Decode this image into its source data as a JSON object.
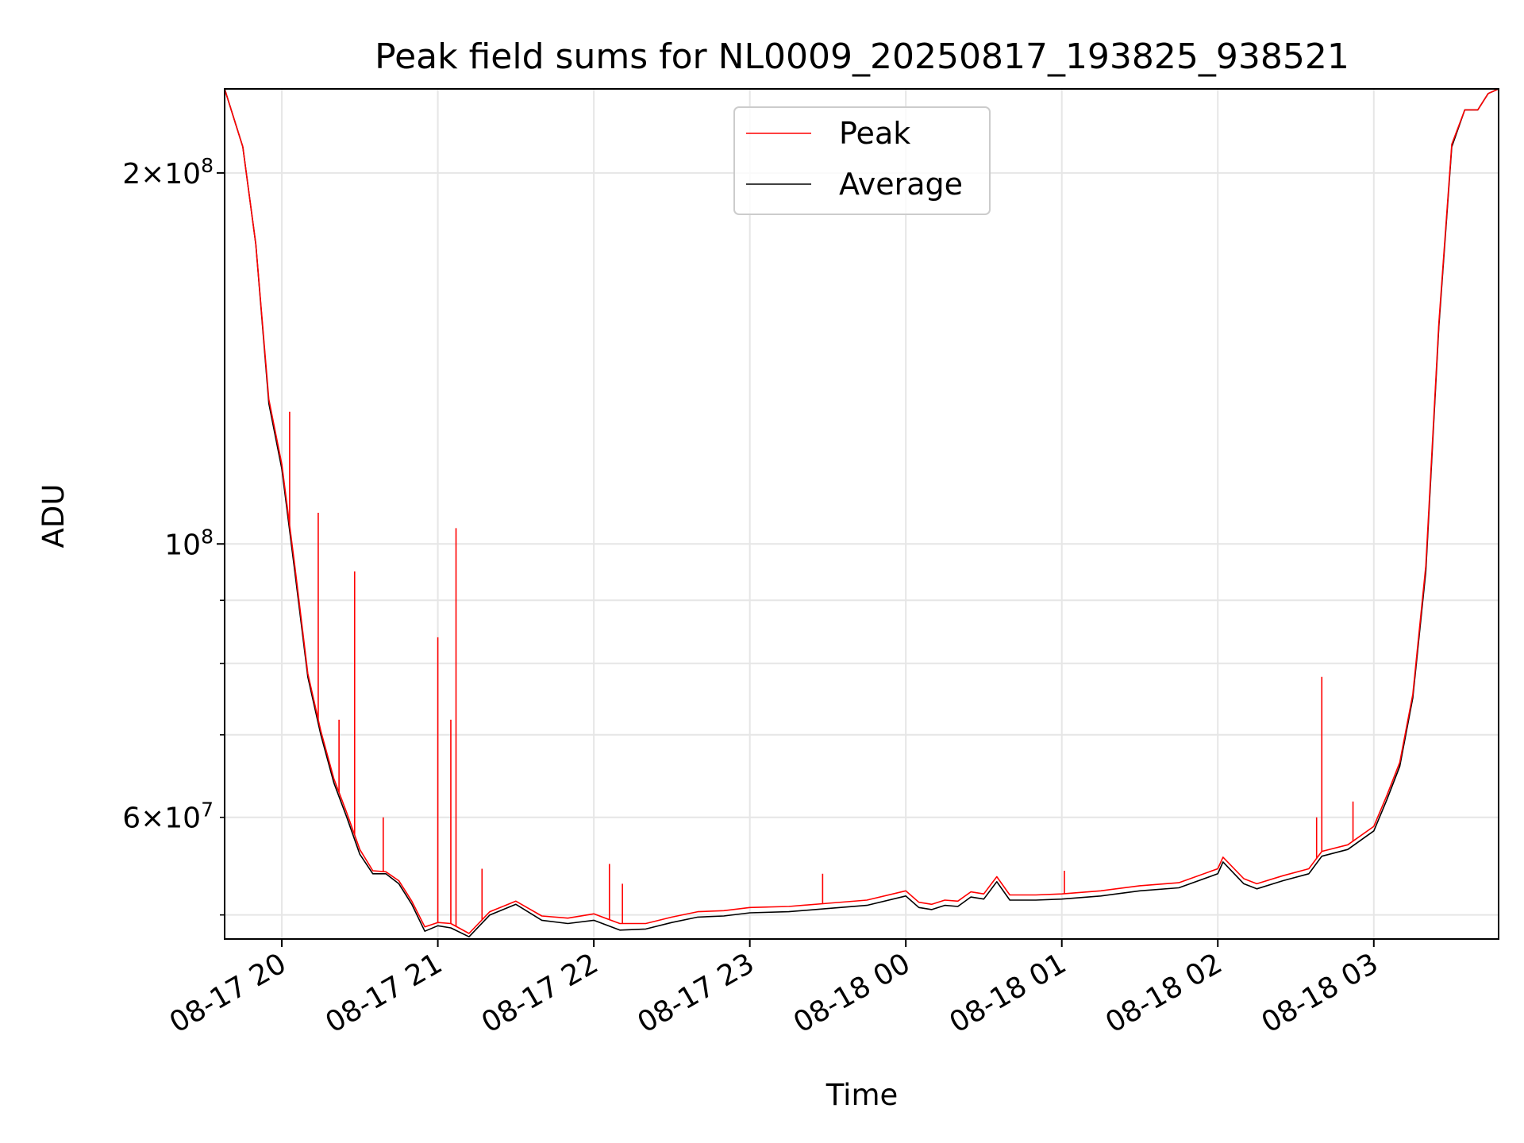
{
  "chart_data": {
    "type": "line",
    "title": "Peak field sums for NL0009_20250817_193825_938521",
    "xlabel": "Time",
    "ylabel": "ADU",
    "y_scale": "log",
    "ylim": [
      47800000,
      234000000
    ],
    "xlim": [
      "2025-08-17 19:38",
      "2025-08-18 03:48"
    ],
    "grid": true,
    "legend_position": "upper center",
    "x_ticks": [
      {
        "x": "2025-08-17 20:00",
        "label": "08-17 20"
      },
      {
        "x": "2025-08-17 21:00",
        "label": "08-17 21"
      },
      {
        "x": "2025-08-17 22:00",
        "label": "08-17 22"
      },
      {
        "x": "2025-08-17 23:00",
        "label": "08-17 23"
      },
      {
        "x": "2025-08-18 00:00",
        "label": "08-18 00"
      },
      {
        "x": "2025-08-18 01:00",
        "label": "08-18 01"
      },
      {
        "x": "2025-08-18 02:00",
        "label": "08-18 02"
      },
      {
        "x": "2025-08-18 03:00",
        "label": "08-18 03"
      }
    ],
    "y_major_ticks": [
      {
        "value": 100000000,
        "base": "10",
        "exp": "8"
      },
      {
        "value": 200000000,
        "mant": "2",
        "base": "10",
        "exp": "8"
      }
    ],
    "y_minor_ticks": [
      {
        "value": 50000000
      },
      {
        "value": 60000000,
        "mant": "6",
        "base": "10",
        "exp": "7"
      },
      {
        "value": 70000000
      },
      {
        "value": 80000000
      },
      {
        "value": 90000000
      }
    ],
    "series": [
      {
        "name": "Average",
        "color": "#000000",
        "x": [
          "2025-08-17 19:38",
          "2025-08-17 19:45",
          "2025-08-17 19:50",
          "2025-08-17 19:55",
          "2025-08-17 20:00",
          "2025-08-17 20:05",
          "2025-08-17 20:10",
          "2025-08-17 20:15",
          "2025-08-17 20:20",
          "2025-08-17 20:25",
          "2025-08-17 20:30",
          "2025-08-17 20:35",
          "2025-08-17 20:40",
          "2025-08-17 20:45",
          "2025-08-17 20:50",
          "2025-08-17 20:55",
          "2025-08-17 21:00",
          "2025-08-17 21:05",
          "2025-08-17 21:12",
          "2025-08-17 21:20",
          "2025-08-17 21:30",
          "2025-08-17 21:40",
          "2025-08-17 21:50",
          "2025-08-17 22:00",
          "2025-08-17 22:10",
          "2025-08-17 22:20",
          "2025-08-17 22:30",
          "2025-08-17 22:40",
          "2025-08-17 22:50",
          "2025-08-17 23:00",
          "2025-08-17 23:15",
          "2025-08-17 23:30",
          "2025-08-17 23:45",
          "2025-08-18 00:00",
          "2025-08-18 00:05",
          "2025-08-18 00:10",
          "2025-08-18 00:15",
          "2025-08-18 00:20",
          "2025-08-18 00:25",
          "2025-08-18 00:30",
          "2025-08-18 00:35",
          "2025-08-18 00:40",
          "2025-08-18 00:50",
          "2025-08-18 01:00",
          "2025-08-18 01:15",
          "2025-08-18 01:30",
          "2025-08-18 01:45",
          "2025-08-18 02:00",
          "2025-08-18 02:02",
          "2025-08-18 02:10",
          "2025-08-18 02:15",
          "2025-08-18 02:25",
          "2025-08-18 02:35",
          "2025-08-18 02:40",
          "2025-08-18 02:50",
          "2025-08-18 03:00",
          "2025-08-18 03:05",
          "2025-08-18 03:10",
          "2025-08-18 03:15",
          "2025-08-18 03:20",
          "2025-08-18 03:25",
          "2025-08-18 03:30",
          "2025-08-18 03:35",
          "2025-08-18 03:40",
          "2025-08-18 03:44",
          "2025-08-18 03:48"
        ],
        "y": [
          234000000,
          210000000,
          175000000,
          130000000,
          115000000,
          95000000,
          78000000,
          70000000,
          64000000,
          60000000,
          56000000,
          54000000,
          54000000,
          53000000,
          51000000,
          48500000,
          49000000,
          48800000,
          48000000,
          50000000,
          51000000,
          49500000,
          49200000,
          49500000,
          48600000,
          48700000,
          49300000,
          49800000,
          49900000,
          50200000,
          50300000,
          50600000,
          50900000,
          51800000,
          50700000,
          50500000,
          50900000,
          50800000,
          51700000,
          51500000,
          53200000,
          51400000,
          51400000,
          51500000,
          51800000,
          52300000,
          52600000,
          54000000,
          55200000,
          53000000,
          52500000,
          53300000,
          54000000,
          55800000,
          56500000,
          58500000,
          62000000,
          66000000,
          75000000,
          95000000,
          150000000,
          210000000,
          225000000,
          225000000,
          232000000,
          234000000
        ]
      },
      {
        "name": "Peak",
        "color": "#ff0000",
        "x": [
          "2025-08-17 19:38",
          "2025-08-17 19:45",
          "2025-08-17 19:50",
          "2025-08-17 19:55",
          "2025-08-17 20:00",
          "2025-08-17 20:05",
          "2025-08-17 20:10",
          "2025-08-17 20:15",
          "2025-08-17 20:20",
          "2025-08-17 20:25",
          "2025-08-17 20:30",
          "2025-08-17 20:35",
          "2025-08-17 20:40",
          "2025-08-17 20:45",
          "2025-08-17 20:50",
          "2025-08-17 20:55",
          "2025-08-17 21:00",
          "2025-08-17 21:05",
          "2025-08-17 21:12",
          "2025-08-17 21:20",
          "2025-08-17 21:30",
          "2025-08-17 21:40",
          "2025-08-17 21:50",
          "2025-08-17 22:00",
          "2025-08-17 22:10",
          "2025-08-17 22:20",
          "2025-08-17 22:30",
          "2025-08-17 22:40",
          "2025-08-17 22:50",
          "2025-08-17 23:00",
          "2025-08-17 23:15",
          "2025-08-17 23:30",
          "2025-08-17 23:45",
          "2025-08-18 00:00",
          "2025-08-18 00:05",
          "2025-08-18 00:10",
          "2025-08-18 00:15",
          "2025-08-18 00:20",
          "2025-08-18 00:25",
          "2025-08-18 00:30",
          "2025-08-18 00:35",
          "2025-08-18 00:40",
          "2025-08-18 00:50",
          "2025-08-18 01:00",
          "2025-08-18 01:15",
          "2025-08-18 01:30",
          "2025-08-18 01:45",
          "2025-08-18 02:00",
          "2025-08-18 02:02",
          "2025-08-18 02:10",
          "2025-08-18 02:15",
          "2025-08-18 02:25",
          "2025-08-18 02:35",
          "2025-08-18 02:40",
          "2025-08-18 02:50",
          "2025-08-18 03:00",
          "2025-08-18 03:05",
          "2025-08-18 03:10",
          "2025-08-18 03:15",
          "2025-08-18 03:20",
          "2025-08-18 03:25",
          "2025-08-18 03:30",
          "2025-08-18 03:35",
          "2025-08-18 03:40",
          "2025-08-18 03:44",
          "2025-08-18 03:48"
        ],
        "y": [
          234000000,
          210000000,
          175000000,
          131000000,
          116000000,
          96000000,
          78500000,
          70500000,
          64500000,
          60500000,
          56500000,
          54300000,
          54200000,
          53300000,
          51300000,
          48900000,
          49300000,
          49200000,
          48300000,
          50300000,
          51300000,
          49900000,
          49700000,
          50100000,
          49200000,
          49200000,
          49800000,
          50300000,
          50400000,
          50700000,
          50800000,
          51100000,
          51400000,
          52300000,
          51200000,
          51000000,
          51400000,
          51300000,
          52200000,
          52000000,
          53700000,
          51900000,
          51900000,
          52000000,
          52300000,
          52800000,
          53100000,
          54500000,
          55700000,
          53500000,
          53000000,
          53800000,
          54500000,
          56300000,
          57000000,
          59000000,
          62500000,
          66500000,
          75500000,
          96000000,
          151000000,
          211000000,
          225000000,
          225000000,
          232000000,
          234000000
        ]
      }
    ],
    "spikes": [
      {
        "x": "2025-08-17 20:03",
        "y": 128000000
      },
      {
        "x": "2025-08-17 20:14",
        "y": 106000000
      },
      {
        "x": "2025-08-17 20:28",
        "y": 95000000
      },
      {
        "x": "2025-08-17 20:22",
        "y": 72000000
      },
      {
        "x": "2025-08-17 20:39",
        "y": 60000000
      },
      {
        "x": "2025-08-17 21:00",
        "y": 84000000
      },
      {
        "x": "2025-08-17 21:05",
        "y": 72000000
      },
      {
        "x": "2025-08-17 21:07",
        "y": 103000000
      },
      {
        "x": "2025-08-17 21:17",
        "y": 54500000
      },
      {
        "x": "2025-08-17 22:06",
        "y": 55000000
      },
      {
        "x": "2025-08-17 22:11",
        "y": 53000000
      },
      {
        "x": "2025-08-17 23:28",
        "y": 54000000
      },
      {
        "x": "2025-08-18 01:01",
        "y": 54300000
      },
      {
        "x": "2025-08-18 02:40",
        "y": 78000000
      },
      {
        "x": "2025-08-18 02:38",
        "y": 60000000
      },
      {
        "x": "2025-08-18 02:52",
        "y": 61800000
      }
    ],
    "legend": [
      {
        "label": "Peak",
        "color": "#ff0000"
      },
      {
        "label": "Average",
        "color": "#000000"
      }
    ]
  }
}
